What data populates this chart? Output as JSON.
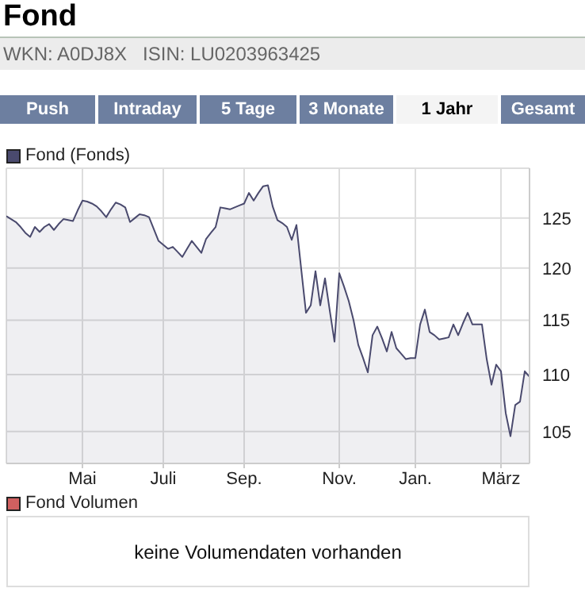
{
  "chart_data": {
    "type": "area",
    "title": "Fond",
    "subtitle": "WKN: A0DJ8X   ISIN: LU0203963425",
    "annotations": [
      "Push",
      "Intraday",
      "5 Tage",
      "3 Monate",
      "1 Jahr",
      "Gesamt",
      "Fond Volumen",
      "keine Volumendaten vorhanden"
    ],
    "categories": [
      null,
      null,
      null,
      null,
      null,
      null,
      null,
      null,
      null,
      null,
      null,
      null,
      null,
      null,
      null,
      null,
      "Mai",
      null,
      null,
      null,
      null,
      null,
      null,
      null,
      null,
      null,
      null,
      null,
      null,
      null,
      null,
      null,
      null,
      "Juli",
      null,
      null,
      null,
      null,
      null,
      null,
      null,
      null,
      null,
      null,
      null,
      null,
      null,
      null,
      null,
      null,
      "Sep.",
      null,
      null,
      null,
      null,
      null,
      null,
      null,
      null,
      null,
      null,
      null,
      null,
      null,
      null,
      null,
      null,
      null,
      null,
      null,
      "Nov.",
      null,
      null,
      null,
      null,
      null,
      null,
      null,
      null,
      null,
      null,
      null,
      null,
      null,
      null,
      null,
      "Jan.",
      null,
      null,
      null,
      null,
      null,
      null,
      null,
      null,
      null,
      null,
      null,
      null,
      null,
      null,
      null,
      null,
      null,
      "März",
      null,
      null,
      null,
      null,
      null,
      null
    ],
    "series": [
      {
        "name": "Fond (Fonds)",
        "color": "#4a4a6e",
        "values": [
          125.2,
          124.9,
          124.6,
          124.1,
          123.5,
          123.1,
          124.1,
          123.6,
          124.1,
          124.4,
          123.8,
          124.4,
          124.9,
          124.8,
          124.7,
          125.8,
          126.8,
          126.7,
          126.5,
          126.2,
          125.7,
          125.1,
          125.9,
          126.6,
          126.4,
          126.1,
          124.6,
          125.0,
          125.4,
          125.3,
          125.1,
          123.9,
          122.7,
          122.3,
          121.9,
          122.1,
          121.6,
          121.1,
          121.9,
          122.7,
          122.1,
          121.5,
          122.9,
          123.5,
          124.1,
          126.1,
          126.0,
          125.9,
          126.1,
          126.3,
          126.5,
          127.6,
          126.8,
          127.6,
          128.3,
          128.4,
          126.2,
          124.8,
          124.5,
          124.1,
          122.8,
          124.3,
          119.9,
          115.7,
          116.4,
          119.7,
          116.4,
          119.0,
          115.9,
          113.0,
          119.5,
          118.2,
          116.8,
          115.0,
          112.7,
          111.5,
          110.2,
          113.6,
          114.4,
          113.3,
          112.1,
          113.9,
          112.4,
          111.9,
          111.4,
          111.5,
          111.5,
          114.6,
          116.0,
          113.9,
          113.6,
          113.2,
          113.3,
          113.4,
          114.6,
          113.6,
          114.7,
          115.7,
          114.6,
          114.6,
          114.6,
          111.4,
          109.1,
          110.9,
          110.3,
          106.6,
          104.6,
          107.3,
          107.6,
          110.3,
          109.8
        ]
      }
    ],
    "ylim": [
      102.3,
      130.2
    ],
    "yticks": [
      105,
      110,
      115,
      120,
      125
    ],
    "log": true,
    "grid": true,
    "legend": "top left"
  }
}
